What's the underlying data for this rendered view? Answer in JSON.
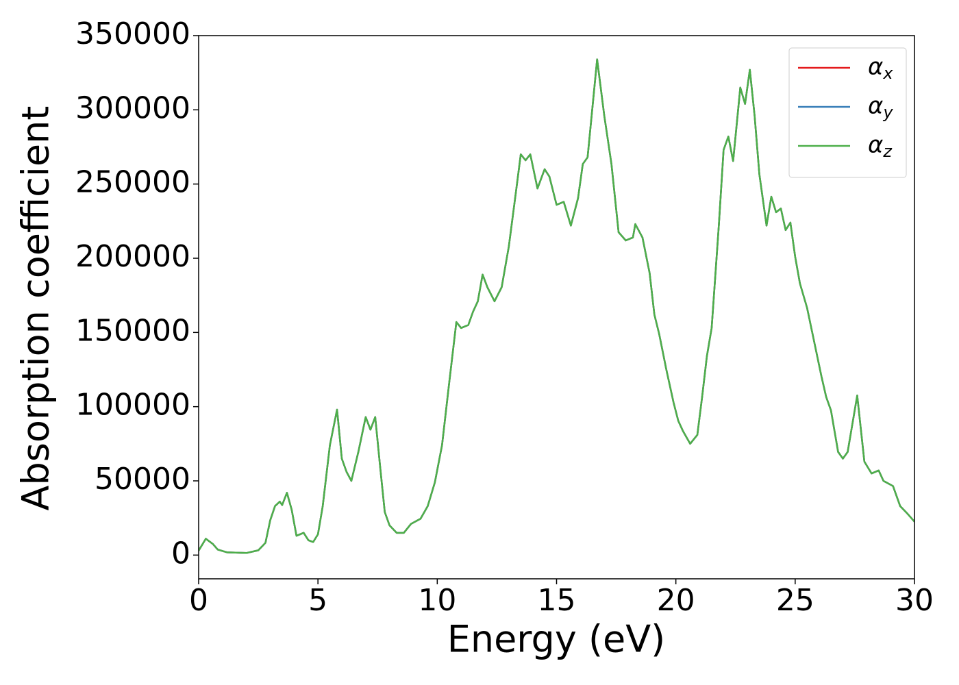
{
  "chart_data": {
    "type": "line",
    "xlabel": "Energy (eV)",
    "ylabel": "Absorption coefficient",
    "x": [
      0,
      0.3,
      0.6,
      0.8,
      1.2,
      2,
      2.5,
      2.8,
      3.0,
      3.2,
      3.4,
      3.5,
      3.7,
      3.9,
      4.1,
      4.4,
      4.6,
      4.8,
      5.0,
      5.2,
      5.5,
      5.8,
      6.0,
      6.2,
      6.4,
      6.7,
      7.0,
      7.2,
      7.4,
      7.6,
      7.8,
      8.0,
      8.3,
      8.6,
      8.9,
      9.3,
      9.6,
      9.9,
      10.2,
      10.5,
      10.8,
      11.0,
      11.3,
      11.5,
      11.7,
      11.9,
      12.1,
      12.4,
      12.7,
      13.0,
      13.3,
      13.5,
      13.7,
      13.9,
      14.2,
      14.5,
      14.7,
      15.0,
      15.3,
      15.6,
      15.9,
      16.1,
      16.3,
      16.7,
      17.0,
      17.3,
      17.6,
      17.9,
      18.2,
      18.3,
      18.6,
      18.9,
      19.1,
      19.3,
      19.6,
      19.9,
      20.1,
      20.3,
      20.6,
      20.9,
      21.1,
      21.3,
      21.5,
      21.8,
      22.0,
      22.2,
      22.4,
      22.7,
      22.9,
      23.1,
      23.3,
      23.5,
      23.8,
      24.0,
      24.2,
      24.4,
      24.6,
      24.8,
      25.0,
      25.2,
      25.5,
      25.8,
      26.1,
      26.3,
      26.5,
      26.8,
      27.0,
      27.2,
      27.6,
      27.9,
      28.2,
      28.5,
      28.7,
      29.1,
      29.4,
      29.7,
      30.0
    ],
    "series": [
      {
        "name": "αx",
        "color": "#e41a1c",
        "values": [
          3000,
          11000,
          7400,
          3700,
          1800,
          1400,
          3200,
          8300,
          23500,
          33000,
          36000,
          33700,
          42000,
          30500,
          13000,
          15000,
          10000,
          8800,
          14000,
          33000,
          74000,
          98000,
          65000,
          56000,
          50000,
          70000,
          93000,
          84500,
          93000,
          60500,
          29000,
          20000,
          15000,
          15000,
          21000,
          24500,
          33000,
          49000,
          74000,
          116000,
          157000,
          153000,
          155000,
          164000,
          171000,
          189000,
          180500,
          171000,
          180500,
          208000,
          245000,
          270000,
          266000,
          270000,
          247000,
          260000,
          255000,
          236000,
          238000,
          222000,
          240500,
          263500,
          268000,
          334000,
          296000,
          263500,
          217500,
          212000,
          214000,
          223000,
          214000,
          190000,
          162000,
          149000,
          125000,
          103000,
          90500,
          83500,
          75000,
          81000,
          106500,
          134000,
          153000,
          222000,
          273000,
          282000,
          265500,
          315000,
          304000,
          327000,
          296000,
          256500,
          222000,
          241500,
          231000,
          233500,
          219000,
          224000,
          201000,
          183000,
          166500,
          143500,
          120500,
          106500,
          97500,
          69500,
          65000,
          69500,
          107500,
          63000,
          55000,
          57000,
          50000,
          46500,
          33000,
          28000,
          22500
        ]
      },
      {
        "name": "αy",
        "color": "#377eb8",
        "values": [
          3000,
          11000,
          7400,
          3700,
          1800,
          1400,
          3200,
          8300,
          23500,
          33000,
          36000,
          33700,
          42000,
          30500,
          13000,
          15000,
          10000,
          8800,
          14000,
          33000,
          74000,
          98000,
          65000,
          56000,
          50000,
          70000,
          93000,
          84500,
          93000,
          60500,
          29000,
          20000,
          15000,
          15000,
          21000,
          24500,
          33000,
          49000,
          74000,
          116000,
          157000,
          153000,
          155000,
          164000,
          171000,
          189000,
          180500,
          171000,
          180500,
          208000,
          245000,
          270000,
          266000,
          270000,
          247000,
          260000,
          255000,
          236000,
          238000,
          222000,
          240500,
          263500,
          268000,
          334000,
          296000,
          263500,
          217500,
          212000,
          214000,
          223000,
          214000,
          190000,
          162000,
          149000,
          125000,
          103000,
          90500,
          83500,
          75000,
          81000,
          106500,
          134000,
          153000,
          222000,
          273000,
          282000,
          265500,
          315000,
          304000,
          327000,
          296000,
          256500,
          222000,
          241500,
          231000,
          233500,
          219000,
          224000,
          201000,
          183000,
          166500,
          143500,
          120500,
          106500,
          97500,
          69500,
          65000,
          69500,
          107500,
          63000,
          55000,
          57000,
          50000,
          46500,
          33000,
          28000,
          22500
        ]
      },
      {
        "name": "αz",
        "color": "#4daf4a",
        "values": [
          3000,
          11000,
          7400,
          3700,
          1800,
          1400,
          3200,
          8300,
          23500,
          33000,
          36000,
          33700,
          42000,
          30500,
          13000,
          15000,
          10000,
          8800,
          14000,
          33000,
          74000,
          98000,
          65000,
          56000,
          50000,
          70000,
          93000,
          84500,
          93000,
          60500,
          29000,
          20000,
          15000,
          15000,
          21000,
          24500,
          33000,
          49000,
          74000,
          116000,
          157000,
          153000,
          155000,
          164000,
          171000,
          189000,
          180500,
          171000,
          180500,
          208000,
          245000,
          270000,
          266000,
          270000,
          247000,
          260000,
          255000,
          236000,
          238000,
          222000,
          240500,
          263500,
          268000,
          334000,
          296000,
          263500,
          217500,
          212000,
          214000,
          223000,
          214000,
          190000,
          162000,
          149000,
          125000,
          103000,
          90500,
          83500,
          75000,
          81000,
          106500,
          134000,
          153000,
          222000,
          273000,
          282000,
          265500,
          315000,
          304000,
          327000,
          296000,
          256500,
          222000,
          241500,
          231000,
          233500,
          219000,
          224000,
          201000,
          183000,
          166500,
          143500,
          120500,
          106500,
          97500,
          69500,
          65000,
          69500,
          107500,
          63000,
          55000,
          57000,
          50000,
          46500,
          33000,
          28000,
          22500
        ]
      }
    ],
    "xlim": [
      0,
      30
    ],
    "xticks": [
      0,
      5,
      10,
      15,
      20,
      25,
      30
    ],
    "ylim": [
      -16000,
      350000
    ],
    "yticks": [
      0,
      50000,
      100000,
      150000,
      200000,
      250000,
      300000,
      350000
    ],
    "legend": "upper right"
  }
}
